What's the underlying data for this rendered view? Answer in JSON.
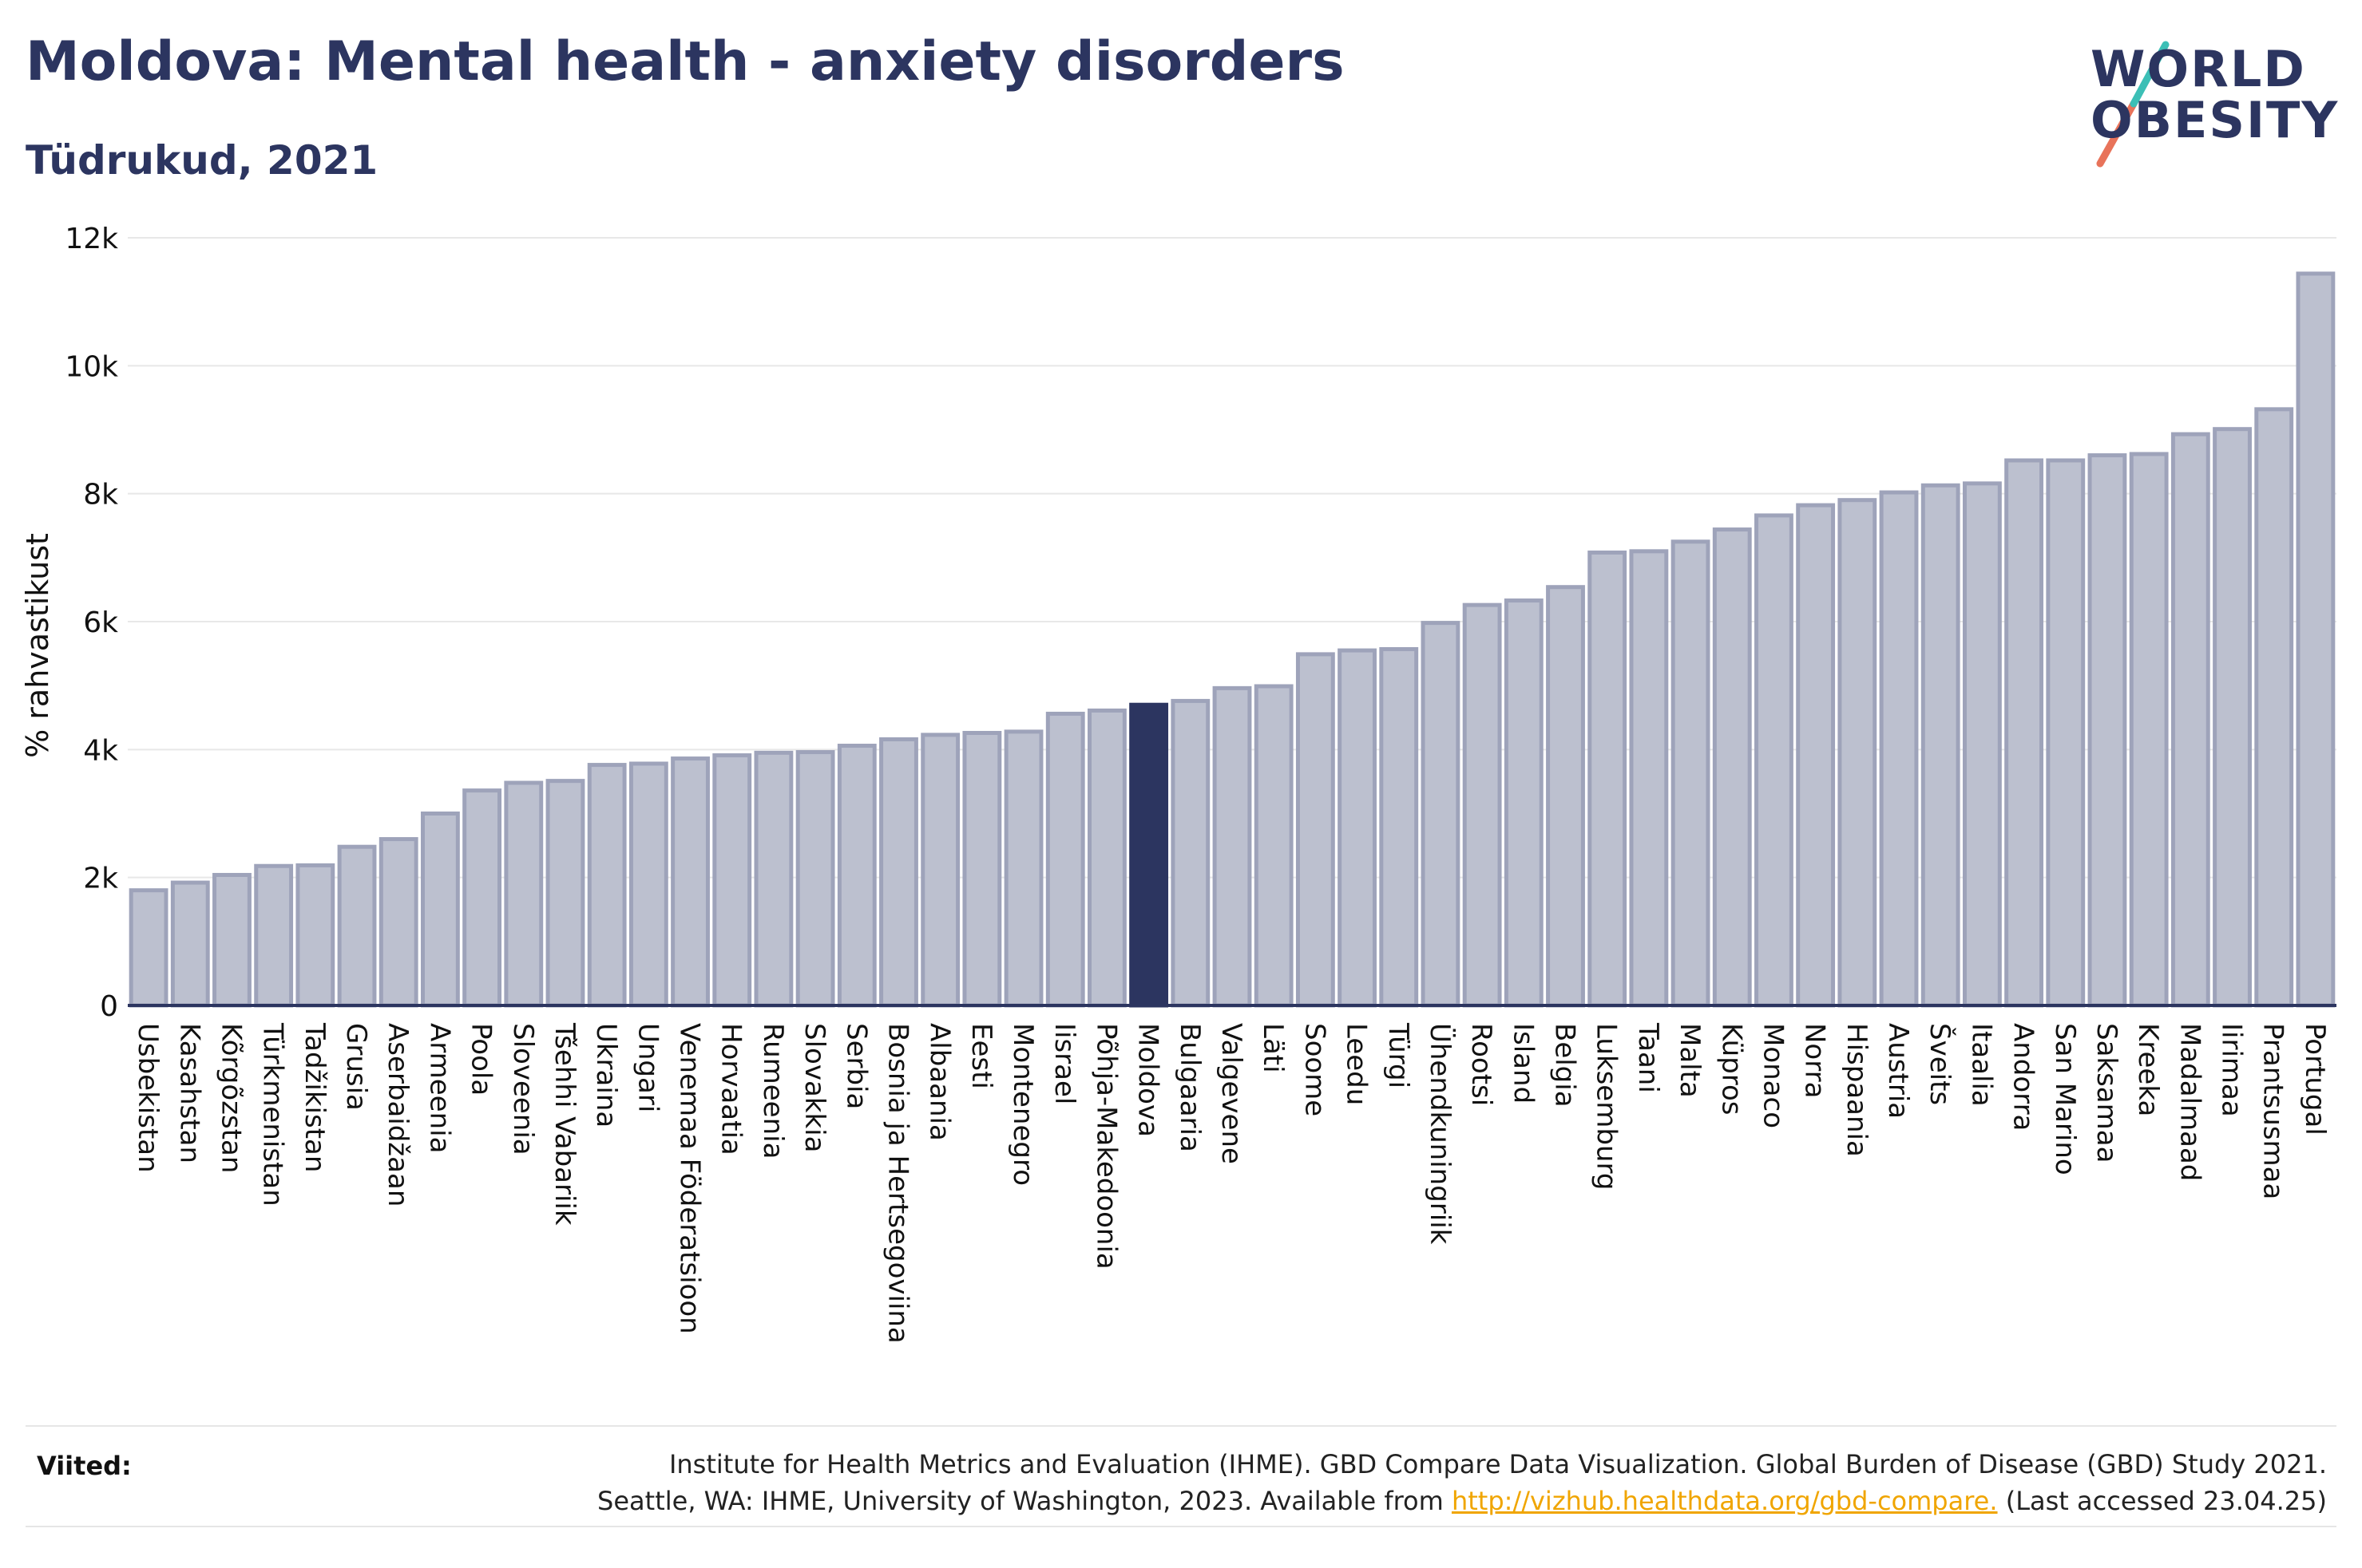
{
  "header": {
    "title": "Moldova: Mental health - anxiety disorders",
    "subtitle": "Tüdrukud, 2021"
  },
  "logo": {
    "line1": "WORLD",
    "line2": "OBESITY",
    "slash_colors": [
      "#e8735a",
      "#3cbfb6"
    ]
  },
  "colors": {
    "bar": "#bcc0cf",
    "bar_stroke": "#9ea3ba",
    "highlight": "#2c3560",
    "axis": "#2c3560",
    "grid": "#e8e8e8"
  },
  "chart_data": {
    "type": "bar",
    "title": "Moldova: Mental health - anxiety disorders",
    "subtitle": "Tüdrukud, 2021",
    "ylabel": "% rahvastikust",
    "xlabel": "",
    "ylim": [
      0,
      12000
    ],
    "yticks": [
      0,
      2000,
      4000,
      6000,
      8000,
      10000,
      12000
    ],
    "ytick_labels": [
      "0",
      "2k",
      "4k",
      "6k",
      "8k",
      "10k",
      "12k"
    ],
    "grid": true,
    "highlight": "Moldova",
    "categories": [
      "Usbekistan",
      "Kasahstan",
      "Kõrgõzstan",
      "Türkmenistan",
      "Tadžikistan",
      "Grusia",
      "Aserbaidžaan",
      "Armeenia",
      "Poola",
      "Sloveenia",
      "Tšehhi Vabariik",
      "Ukraina",
      "Ungari",
      "Venemaa Föderatsioon",
      "Horvaatia",
      "Rumeenia",
      "Slovakkia",
      "Serbia",
      "Bosnia ja Hertsegoviina",
      "Albaania",
      "Eesti",
      "Montenegro",
      "Iisrael",
      "Põhja-Makedoonia",
      "Moldova",
      "Bulgaaria",
      "Valgevene",
      "Läti",
      "Soome",
      "Leedu",
      "Türgi",
      "Ühendkuningriik",
      "Rootsi",
      "Island",
      "Belgia",
      "Luksemburg",
      "Taani",
      "Malta",
      "Küpros",
      "Monaco",
      "Norra",
      "Hispaania",
      "Austria",
      "Šveits",
      "Itaalia",
      "Andorra",
      "San Marino",
      "Saksamaa",
      "Kreeka",
      "Madalmaad",
      "Iirimaa",
      "Prantsusmaa",
      "Portugal"
    ],
    "values": [
      1800,
      1920,
      2040,
      2180,
      2190,
      2480,
      2600,
      3000,
      3360,
      3480,
      3510,
      3760,
      3780,
      3860,
      3910,
      3950,
      3960,
      4060,
      4160,
      4230,
      4260,
      4280,
      4560,
      4610,
      4700,
      4760,
      4960,
      4990,
      5490,
      5550,
      5570,
      5980,
      6260,
      6330,
      6540,
      7080,
      7100,
      7250,
      7440,
      7660,
      7820,
      7900,
      8020,
      8130,
      8160,
      8520,
      8520,
      8600,
      8620,
      8930,
      9010,
      9320,
      11440
    ]
  },
  "footer": {
    "label": "Viited:",
    "line1": "Institute for Health Metrics and Evaluation (IHME). GBD Compare Data Visualization. Global Burden of Disease (GBD) Study 2021.",
    "line2_pre": "Seattle, WA: IHME, University of Washington, 2023. Available from ",
    "link": "http://vizhub.healthdata.org/gbd-compare.",
    "line2_post": " (Last accessed 23.04.25)"
  }
}
